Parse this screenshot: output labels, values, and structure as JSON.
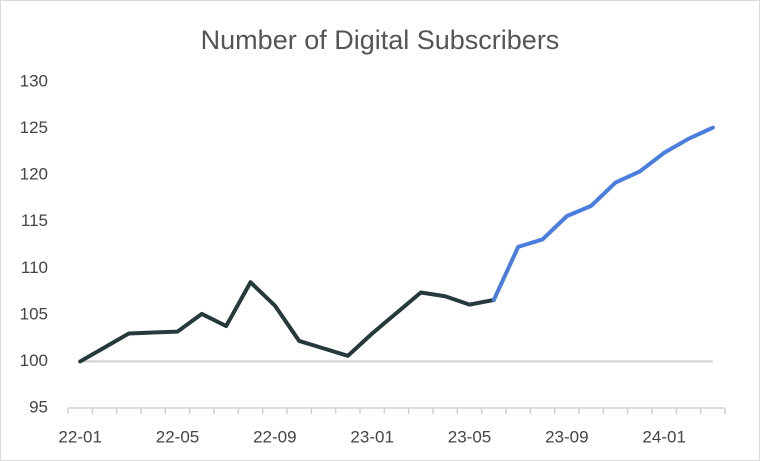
{
  "chart_data": {
    "type": "line",
    "title": "Number of Digital Subscribers",
    "categories": [
      "22-01",
      null,
      null,
      null,
      "22-05",
      null,
      null,
      null,
      "22-09",
      null,
      null,
      null,
      "23-01",
      null,
      null,
      null,
      "23-05",
      null,
      null,
      null,
      "23-09",
      null,
      null,
      null,
      "24-01",
      null,
      null
    ],
    "series": [
      {
        "color": "#263a3c",
        "values": [
          100,
          101.5,
          103,
          103.1,
          103.2,
          105.1,
          103.8,
          108.5,
          106,
          102.2,
          101.4,
          100.6,
          103,
          105.2,
          107.4,
          107,
          106.1,
          106.6,
          null,
          null,
          null,
          null,
          null,
          null,
          null,
          null,
          null
        ]
      },
      {
        "color": "#4a7de0",
        "values": [
          null,
          null,
          null,
          null,
          null,
          null,
          null,
          null,
          null,
          null,
          null,
          null,
          null,
          null,
          null,
          null,
          null,
          106.6,
          112.3,
          113.1,
          115.6,
          116.7,
          119.2,
          120.4,
          122.4,
          123.9,
          125.1
        ]
      }
    ],
    "ylim": [
      95,
      130
    ],
    "yticks": [
      95,
      100,
      105,
      110,
      115,
      120,
      125,
      130
    ],
    "reference_line": 100
  }
}
